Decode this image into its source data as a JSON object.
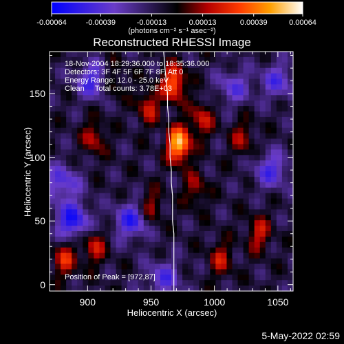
{
  "chart_data": {
    "type": "heatmap",
    "title": "Reconstructed RHESSI Image",
    "colorbar": {
      "ticks": [
        "-0.00064",
        "-0.00039",
        "-0.00013",
        "0.00013",
        "0.00039",
        "0.00064"
      ],
      "tick_values": [
        -0.00064,
        -0.00039,
        -0.00013,
        0.00013,
        0.00039,
        0.00064
      ],
      "range": [
        -0.00064,
        0.00064
      ],
      "units_text": "(photons cm⁻² s⁻¹ asec⁻²)",
      "colors": [
        "#0000ff",
        "#6a3cc8",
        "#000000",
        "#b40000",
        "#ff3c00",
        "#ffa000",
        "#ffffff"
      ]
    },
    "info_lines": [
      "18-Nov-2004 18:29:36.000 to 18:35:36.000",
      "Detectors: 3F 4F 5F 6F 7F 8F, Att 0",
      "Energy Range: 12.0 - 25.0 keV",
      "Clean     Total counts: 3.78E+03"
    ],
    "peak_text": "Position of Peak = [972,87]",
    "peak": {
      "x": 972,
      "y": 87
    },
    "xlabel": "Heliocentric X (arcsec)",
    "ylabel": "Heliocentric Y (arcsec)",
    "xlim": [
      870,
      1062
    ],
    "ylim": [
      -5,
      183
    ],
    "x_ticks": [
      900,
      950,
      1000,
      1050
    ],
    "y_ticks": [
      0,
      50,
      100,
      150
    ],
    "limb_x": [
      960,
      961,
      962,
      963,
      963,
      964,
      964,
      965,
      965,
      966,
      966,
      967,
      967,
      967,
      968,
      968,
      968,
      968,
      968,
      968
    ],
    "limb_y": [
      183,
      170,
      160,
      150,
      140,
      130,
      120,
      110,
      100,
      90,
      80,
      70,
      60,
      50,
      40,
      30,
      20,
      10,
      0,
      -5
    ],
    "sources": [
      {
        "x": 972,
        "y": 110,
        "amp": 1.0
      },
      {
        "x": 968,
        "y": 158,
        "amp": 0.75
      },
      {
        "x": 948,
        "y": 140,
        "amp": 0.45
      },
      {
        "x": 990,
        "y": 130,
        "amp": 0.45
      },
      {
        "x": 905,
        "y": 115,
        "amp": 0.4
      },
      {
        "x": 1022,
        "y": 115,
        "amp": 0.35
      },
      {
        "x": 882,
        "y": 20,
        "amp": 0.5
      },
      {
        "x": 905,
        "y": 30,
        "amp": 0.45
      },
      {
        "x": 950,
        "y": 60,
        "amp": 0.4
      },
      {
        "x": 1035,
        "y": 40,
        "amp": 0.45
      },
      {
        "x": 1005,
        "y": 20,
        "amp": 0.4
      },
      {
        "x": 985,
        "y": 75,
        "amp": 0.35
      },
      {
        "x": 920,
        "y": 160,
        "amp": 0.35
      }
    ],
    "sinks": [
      {
        "x": 888,
        "y": 50,
        "amp": 0.7
      },
      {
        "x": 935,
        "y": 50,
        "amp": 0.6
      },
      {
        "x": 905,
        "y": 160,
        "amp": 0.55
      },
      {
        "x": 1045,
        "y": 90,
        "amp": 0.5
      },
      {
        "x": 1050,
        "y": 160,
        "amp": 0.45
      },
      {
        "x": 880,
        "y": 80,
        "amp": 0.5
      },
      {
        "x": 1015,
        "y": 155,
        "amp": 0.4
      },
      {
        "x": 960,
        "y": 5,
        "amp": 0.45
      }
    ]
  },
  "timestamp": "5-May-2022 02:59"
}
